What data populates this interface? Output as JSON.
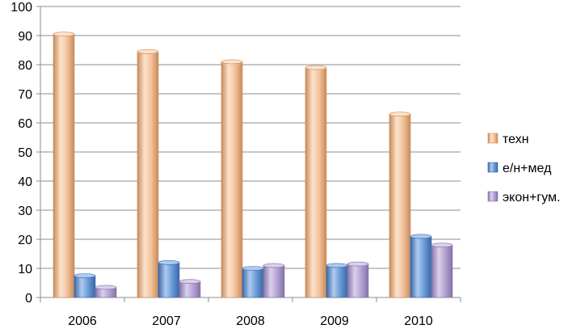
{
  "chart_data": {
    "type": "bar",
    "categories": [
      "2006",
      "2007",
      "2008",
      "2009",
      "2010"
    ],
    "series": [
      {
        "name": "техн",
        "values": [
          90.5,
          84.5,
          81,
          79,
          63
        ],
        "color": "#F4C39C",
        "color_dark": "#C98B5A",
        "color_light": "#FCE3CC"
      },
      {
        "name": "е/н+мед",
        "values": [
          7.5,
          12,
          10,
          11,
          21
        ],
        "color": "#6B9BD8",
        "color_dark": "#3A68A8",
        "color_light": "#AFCBEE"
      },
      {
        "name": "экон+гум.",
        "values": [
          3.5,
          5.5,
          11,
          11.5,
          18
        ],
        "color": "#B5A3D3",
        "color_dark": "#8572A9",
        "color_light": "#DAD0EB"
      }
    ],
    "ylim": [
      0,
      100
    ],
    "yticks": [
      0,
      10,
      20,
      30,
      40,
      50,
      60,
      70,
      80,
      90,
      100
    ],
    "grid": true,
    "legend_position": "right"
  }
}
